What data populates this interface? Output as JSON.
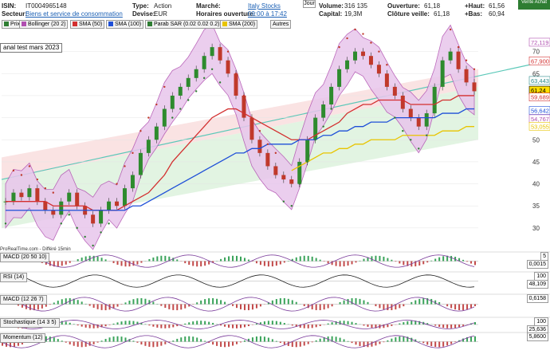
{
  "header": {
    "isin_label": "ISIN:",
    "isin_value": "IT0004965148",
    "sector_label": "Secteur:",
    "sector_value": "Biens et service de consommation",
    "type_label": "Type:",
    "type_value": "Action",
    "currency_label": "Devise:",
    "currency_value": "EUR",
    "market_label": "Marché:",
    "market_value": "Italy Stocks",
    "hours_label": "Horaires ouverture:",
    "hours_value": "09:00 à 17:42",
    "volume_label": "Volume:",
    "volume_value": "316 135",
    "capital_label": "Capital:",
    "capital_value": "19,3M",
    "open_label": "Ouverture:",
    "open_value": "61,18",
    "prev_close_label": "Clôture veille:",
    "prev_close_value": "61,18",
    "high_label": "+Haut:",
    "high_value": "61,56",
    "low_label": "+Bas:",
    "low_value": "60,94",
    "period_button": "Jour",
    "sell_button": "Vente Achat"
  },
  "legend": [
    {
      "label": "Prix",
      "color": "#2e7d32"
    },
    {
      "label": "Bollinger (20 2)",
      "color": "#b04fb0"
    },
    {
      "label": "SMA (50)",
      "color": "#d32f2f"
    },
    {
      "label": "SMA (100)",
      "color": "#1e4fd8"
    },
    {
      "label": "Parab SAR (0.02 0.02 0.2)",
      "color": "#2e7d32"
    },
    {
      "label": "SMA (200)",
      "color": "#e8c400"
    },
    {
      "label": "Autres",
      "color": ""
    }
  ],
  "annotation": "anal test mars 2023",
  "source_text": "ProRealTime.com - Différé 15min",
  "colors": {
    "up": "#2e8b2e",
    "down": "#c0392b",
    "bollinger": "#b04fb0",
    "sma50": "#d32f2f",
    "sma100": "#1e4fd8",
    "sma200": "#e8c400",
    "sar": "#2e7d32",
    "channel_red": "#f8d7d7",
    "channel_green": "#d5f0d5"
  },
  "price_axis": {
    "ticks": [
      "70",
      "65",
      "60",
      "55",
      "50",
      "45",
      "40",
      "35",
      "30"
    ],
    "tags": [
      {
        "value": "72,119",
        "color": "#b04fb0",
        "bg": "#ffffff"
      },
      {
        "value": "67,900",
        "color": "#d32f2f",
        "bg": "#ffffff"
      },
      {
        "value": "63,443",
        "color": "#2a8a8a",
        "bg": "#ffffff"
      },
      {
        "value": "61,24",
        "color": "#000000",
        "bg": "#ffdd00"
      },
      {
        "value": "59,689",
        "color": "#d32f2f",
        "bg": "#ffffff"
      },
      {
        "value": "56,642",
        "color": "#1e4fd8",
        "bg": "#ffffff"
      },
      {
        "value": "54,767",
        "color": "#b04fb0",
        "bg": "#ffffff"
      },
      {
        "value": "53,055",
        "color": "#e8c400",
        "bg": "#ffffff"
      }
    ]
  },
  "chart_data": {
    "type": "line",
    "title": "",
    "xlabel": "",
    "ylabel": "",
    "ylim": [
      26,
      75
    ],
    "series": [
      {
        "name": "Prix",
        "values": [
          36,
          38,
          37,
          39,
          36,
          34,
          33,
          36,
          38,
          35,
          33,
          31,
          34,
          36,
          35,
          39,
          42,
          47,
          50,
          53,
          57,
          60,
          62,
          64,
          66,
          69,
          71,
          68,
          65,
          60,
          55,
          50,
          47,
          44,
          42,
          41,
          40,
          45,
          50,
          55,
          58,
          62,
          66,
          68,
          70,
          69,
          67,
          65,
          62,
          60,
          57,
          55,
          53,
          56,
          62,
          68,
          70,
          66,
          63,
          61
        ]
      },
      {
        "name": "SMA (50)",
        "values": [
          36,
          36,
          36,
          36,
          36,
          36,
          35,
          35,
          35,
          35,
          35,
          34,
          34,
          34,
          34,
          35,
          36,
          37,
          38,
          40,
          42,
          45,
          47,
          49,
          51,
          53,
          55,
          56,
          57,
          57,
          56,
          55,
          54,
          53,
          52,
          51,
          50,
          50,
          50,
          51,
          52,
          53,
          54,
          56,
          57,
          58,
          58,
          59,
          59,
          59,
          59,
          58,
          58,
          58,
          58,
          59,
          59,
          60,
          60,
          60
        ]
      },
      {
        "name": "SMA (100)",
        "values": [
          34,
          34,
          34,
          34,
          34,
          34,
          34,
          34,
          34,
          34,
          34,
          34,
          34,
          34,
          34,
          34,
          35,
          35,
          36,
          37,
          38,
          39,
          40,
          41,
          42,
          43,
          44,
          45,
          46,
          47,
          47,
          48,
          48,
          49,
          49,
          49,
          49,
          50,
          50,
          50,
          51,
          51,
          52,
          52,
          53,
          53,
          54,
          54,
          54,
          55,
          55,
          55,
          55,
          55,
          55,
          56,
          56,
          56,
          57,
          57
        ]
      },
      {
        "name": "SMA (200)",
        "values": [
          null,
          null,
          null,
          null,
          null,
          null,
          null,
          null,
          null,
          null,
          null,
          null,
          null,
          null,
          null,
          null,
          null,
          null,
          null,
          null,
          null,
          null,
          null,
          null,
          null,
          null,
          null,
          null,
          null,
          null,
          null,
          null,
          null,
          null,
          null,
          null,
          43,
          44,
          45,
          46,
          47,
          47,
          48,
          48,
          49,
          49,
          50,
          50,
          50,
          50,
          51,
          51,
          51,
          51,
          51,
          52,
          52,
          52,
          53,
          53
        ]
      }
    ]
  },
  "indicators": [
    {
      "label": "MACD (20 50 10)",
      "values": [
        "5",
        "0,0015"
      ]
    },
    {
      "label": "RSI (14)",
      "values": [
        "100",
        "48,109"
      ]
    },
    {
      "label": "MACD (12 26 7)",
      "values": [
        "0,6158"
      ]
    },
    {
      "label": "Stochastique (14 3 5)",
      "values": [
        "100",
        "25,636"
      ]
    },
    {
      "label": "Momentum (12)",
      "values": [
        "5,8600"
      ]
    }
  ]
}
